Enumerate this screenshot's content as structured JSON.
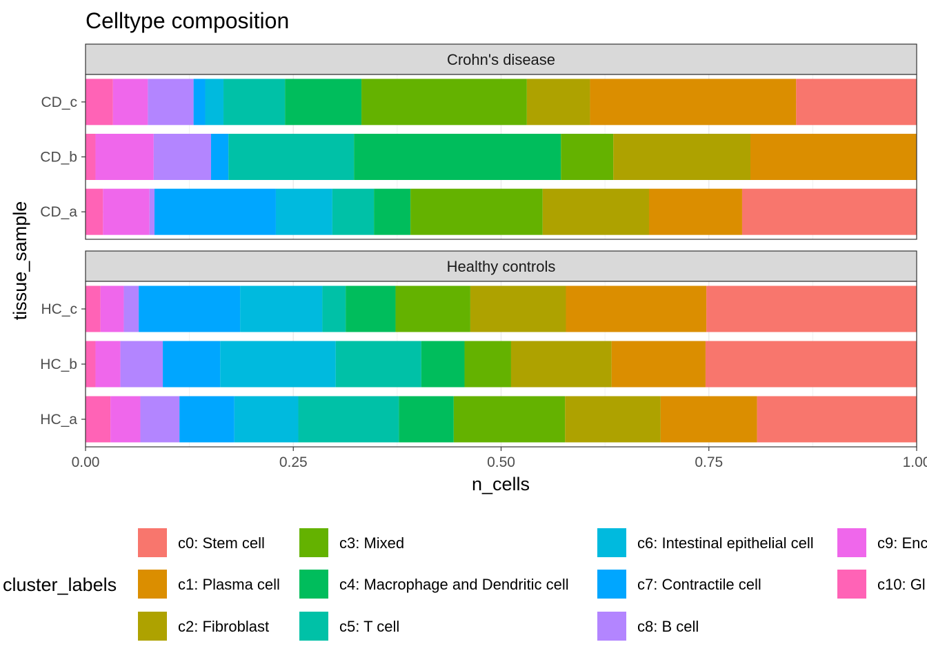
{
  "chart_data": {
    "type": "bar",
    "orientation": "horizontal",
    "stacked": true,
    "title": "Celltype composition",
    "xlabel": "n_cells",
    "ylabel": "tissue_sample",
    "xlim": [
      0,
      1
    ],
    "x_ticks": [
      "0.00",
      "0.25",
      "0.50",
      "0.75",
      "1.00"
    ],
    "grid": true,
    "legend": {
      "title": "cluster_labels",
      "position": "bottom",
      "items": [
        {
          "key": "c0",
          "label": "c0: Stem cell",
          "color": "#F8766D"
        },
        {
          "key": "c1",
          "label": "c1: Plasma cell",
          "color": "#DB8E00"
        },
        {
          "key": "c2",
          "label": "c2: Fibroblast",
          "color": "#AEA200"
        },
        {
          "key": "c3",
          "label": "c3: Mixed",
          "color": "#64B200"
        },
        {
          "key": "c4",
          "label": "c4: Macrophage and Dendritic cell",
          "color": "#00BD5C"
        },
        {
          "key": "c5",
          "label": "c5: T cell",
          "color": "#00C1A7"
        },
        {
          "key": "c6",
          "label": "c6: Intestinal epithelial cell",
          "color": "#00BADE"
        },
        {
          "key": "c7",
          "label": "c7: Contractile cell",
          "color": "#00A6FF"
        },
        {
          "key": "c8",
          "label": "c8: B cell",
          "color": "#B385FF"
        },
        {
          "key": "c9",
          "label": "c9: Enc",
          "color": "#EF67EB"
        },
        {
          "key": "c10",
          "label": "c10: Gl",
          "color": "#FF63B6"
        }
      ]
    },
    "stack_order": [
      "c10",
      "c9",
      "c8",
      "c7",
      "c6",
      "c5",
      "c4",
      "c3",
      "c2",
      "c1",
      "c0"
    ],
    "panels": [
      {
        "facet": "Crohn's disease",
        "rows": [
          {
            "sample": "CD_c",
            "values": {
              "c10": 0.033,
              "c9": 0.042,
              "c8": 0.055,
              "c7": 0.014,
              "c6": 0.022,
              "c5": 0.074,
              "c4": 0.092,
              "c3": 0.199,
              "c2": 0.076,
              "c1": 0.248,
              "c0": 0.145
            }
          },
          {
            "sample": "CD_b",
            "values": {
              "c10": 0.012,
              "c9": 0.07,
              "c8": 0.069,
              "c7": 0.021,
              "c6": 0.0,
              "c5": 0.151,
              "c4": 0.249,
              "c3": 0.063,
              "c2": 0.165,
              "c1": 0.2,
              "c0": 0.0
            }
          },
          {
            "sample": "CD_a",
            "values": {
              "c10": 0.021,
              "c9": 0.056,
              "c8": 0.006,
              "c7": 0.146,
              "c6": 0.068,
              "c5": 0.05,
              "c4": 0.044,
              "c3": 0.159,
              "c2": 0.128,
              "c1": 0.112,
              "c0": 0.21
            }
          }
        ]
      },
      {
        "facet": "Healthy controls",
        "rows": [
          {
            "sample": "HC_c",
            "values": {
              "c10": 0.018,
              "c9": 0.028,
              "c8": 0.018,
              "c7": 0.122,
              "c6": 0.099,
              "c5": 0.028,
              "c4": 0.06,
              "c3": 0.09,
              "c2": 0.115,
              "c1": 0.169,
              "c0": 0.253
            }
          },
          {
            "sample": "HC_b",
            "values": {
              "c10": 0.012,
              "c9": 0.03,
              "c8": 0.051,
              "c7": 0.069,
              "c6": 0.139,
              "c5": 0.103,
              "c4": 0.052,
              "c3": 0.056,
              "c2": 0.121,
              "c1": 0.113,
              "c0": 0.254
            }
          },
          {
            "sample": "HC_a",
            "values": {
              "c10": 0.03,
              "c9": 0.036,
              "c8": 0.047,
              "c7": 0.066,
              "c6": 0.077,
              "c5": 0.121,
              "c4": 0.066,
              "c3": 0.134,
              "c2": 0.115,
              "c1": 0.116,
              "c0": 0.192
            }
          }
        ]
      }
    ]
  }
}
